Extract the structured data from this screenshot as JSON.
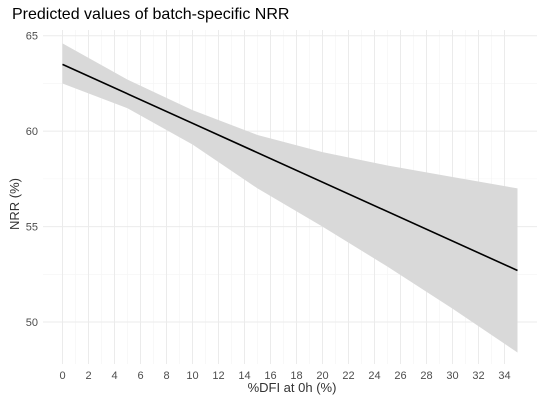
{
  "chart_data": {
    "type": "line",
    "title": "Predicted values of batch-specific NRR",
    "xlabel": "%DFI at 0h (%)",
    "ylabel": "NRR (%)",
    "xlim": [
      -1.5,
      36.5
    ],
    "ylim": [
      47.8,
      65.3
    ],
    "x_ticks": [
      0,
      2,
      4,
      6,
      8,
      10,
      12,
      14,
      16,
      18,
      20,
      22,
      24,
      26,
      28,
      30,
      32,
      34
    ],
    "y_ticks": [
      50,
      55,
      60,
      65
    ],
    "grid": true,
    "series": [
      {
        "x": [
          0,
          35
        ],
        "y": [
          63.5,
          52.7
        ],
        "ci_upper": [
          {
            "x": 0,
            "y": 64.6
          },
          {
            "x": 5,
            "y": 62.7
          },
          {
            "x": 10,
            "y": 61.1
          },
          {
            "x": 15,
            "y": 59.8
          },
          {
            "x": 20,
            "y": 58.9
          },
          {
            "x": 25,
            "y": 58.2
          },
          {
            "x": 30,
            "y": 57.6
          },
          {
            "x": 35,
            "y": 57.0
          }
        ],
        "ci_lower": [
          {
            "x": 0,
            "y": 62.5
          },
          {
            "x": 5,
            "y": 61.2
          },
          {
            "x": 10,
            "y": 59.3
          },
          {
            "x": 15,
            "y": 57.0
          },
          {
            "x": 20,
            "y": 55.0
          },
          {
            "x": 25,
            "y": 52.9
          },
          {
            "x": 30,
            "y": 50.7
          },
          {
            "x": 35,
            "y": 48.4
          }
        ],
        "line_color": "#000000",
        "band_color": "#d9d9d9"
      }
    ]
  }
}
